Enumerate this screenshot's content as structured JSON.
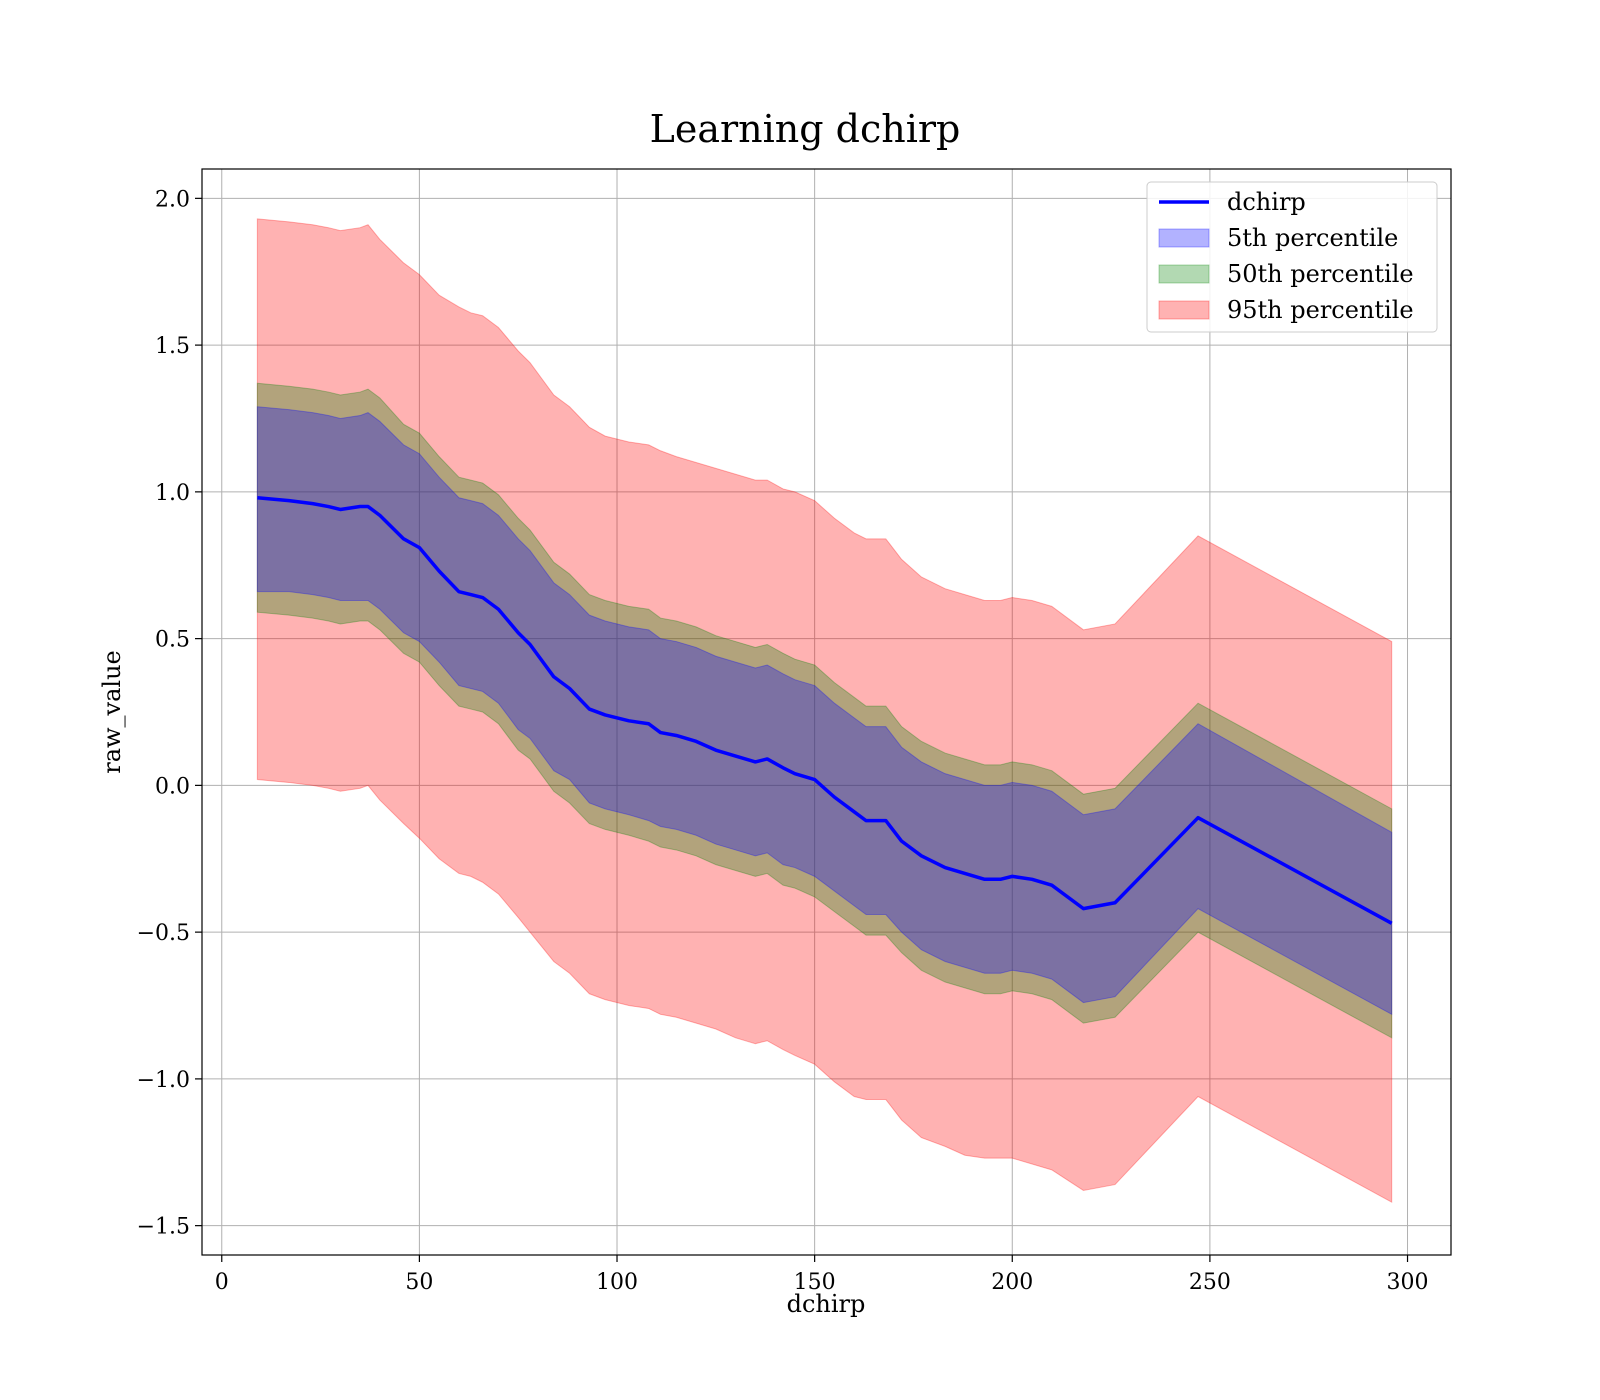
{
  "chart_data": {
    "type": "area",
    "title": "Learning dchirp",
    "xlabel": "dchirp",
    "ylabel": "raw_value",
    "xlim": [
      -5,
      311
    ],
    "ylim": [
      -1.6,
      2.1
    ],
    "xticks": [
      0,
      50,
      100,
      150,
      200,
      250,
      300
    ],
    "yticks": [
      -1.5,
      -1.0,
      -0.5,
      0.0,
      0.5,
      1.0,
      1.5,
      2.0
    ],
    "xtick_labels": [
      "0",
      "50",
      "100",
      "150",
      "200",
      "250",
      "300"
    ],
    "ytick_labels": [
      "−1.5",
      "−1.0",
      "−0.5",
      "0.0",
      "0.5",
      "1.0",
      "1.5",
      "2.0"
    ],
    "grid": true,
    "legend_position": "top-right",
    "x": [
      9,
      17,
      23,
      27,
      30,
      35,
      37,
      40,
      46,
      50,
      55,
      60,
      63,
      66,
      70,
      75,
      78,
      84,
      88,
      93,
      97,
      103,
      108,
      111,
      115,
      120,
      125,
      130,
      135,
      138,
      142,
      145,
      150,
      155,
      160,
      163,
      168,
      172,
      177,
      183,
      188,
      193,
      197,
      200,
      205,
      210,
      218,
      226,
      247,
      296
    ],
    "series": [
      {
        "name": "dchirp",
        "kind": "line",
        "color": "#0000ff",
        "values": [
          0.98,
          0.97,
          0.96,
          0.95,
          0.94,
          0.95,
          0.95,
          0.92,
          0.84,
          0.81,
          0.73,
          0.66,
          0.65,
          0.64,
          0.6,
          0.52,
          0.48,
          0.37,
          0.33,
          0.26,
          0.24,
          0.22,
          0.21,
          0.18,
          0.17,
          0.15,
          0.12,
          0.1,
          0.08,
          0.09,
          0.06,
          0.04,
          0.02,
          -0.04,
          -0.09,
          -0.12,
          -0.12,
          -0.19,
          -0.24,
          -0.28,
          -0.3,
          -0.32,
          -0.32,
          -0.31,
          -0.32,
          -0.34,
          -0.42,
          -0.4,
          -0.11,
          -0.47
        ]
      },
      {
        "name": "5th percentile",
        "kind": "band",
        "color": "#0000ff",
        "opacity": 0.3,
        "lower": [
          0.66,
          0.66,
          0.65,
          0.64,
          0.63,
          0.63,
          0.63,
          0.6,
          0.52,
          0.49,
          0.42,
          0.34,
          0.33,
          0.32,
          0.28,
          0.19,
          0.16,
          0.05,
          0.02,
          -0.06,
          -0.08,
          -0.1,
          -0.12,
          -0.14,
          -0.15,
          -0.17,
          -0.2,
          -0.22,
          -0.24,
          -0.23,
          -0.27,
          -0.28,
          -0.31,
          -0.36,
          -0.41,
          -0.44,
          -0.44,
          -0.5,
          -0.56,
          -0.6,
          -0.62,
          -0.64,
          -0.64,
          -0.63,
          -0.64,
          -0.66,
          -0.74,
          -0.72,
          -0.42,
          -0.78
        ],
        "upper": [
          1.29,
          1.28,
          1.27,
          1.26,
          1.25,
          1.26,
          1.27,
          1.24,
          1.16,
          1.13,
          1.05,
          0.98,
          0.97,
          0.96,
          0.92,
          0.84,
          0.8,
          0.69,
          0.65,
          0.58,
          0.56,
          0.54,
          0.53,
          0.5,
          0.49,
          0.47,
          0.44,
          0.42,
          0.4,
          0.41,
          0.38,
          0.36,
          0.34,
          0.28,
          0.23,
          0.2,
          0.2,
          0.13,
          0.08,
          0.04,
          0.02,
          0.0,
          0.0,
          0.01,
          0.0,
          -0.02,
          -0.1,
          -0.08,
          0.21,
          -0.16
        ]
      },
      {
        "name": "50th percentile",
        "kind": "band",
        "color": "#008000",
        "opacity": 0.3,
        "lower": [
          0.59,
          0.58,
          0.57,
          0.56,
          0.55,
          0.56,
          0.56,
          0.53,
          0.45,
          0.42,
          0.34,
          0.27,
          0.26,
          0.25,
          0.21,
          0.12,
          0.09,
          -0.02,
          -0.06,
          -0.13,
          -0.15,
          -0.17,
          -0.19,
          -0.21,
          -0.22,
          -0.24,
          -0.27,
          -0.29,
          -0.31,
          -0.3,
          -0.34,
          -0.35,
          -0.38,
          -0.43,
          -0.48,
          -0.51,
          -0.51,
          -0.57,
          -0.63,
          -0.67,
          -0.69,
          -0.71,
          -0.71,
          -0.7,
          -0.71,
          -0.73,
          -0.81,
          -0.79,
          -0.5,
          -0.86
        ],
        "upper": [
          1.37,
          1.36,
          1.35,
          1.34,
          1.33,
          1.34,
          1.35,
          1.32,
          1.23,
          1.2,
          1.12,
          1.05,
          1.04,
          1.03,
          0.99,
          0.91,
          0.87,
          0.76,
          0.72,
          0.65,
          0.63,
          0.61,
          0.6,
          0.57,
          0.56,
          0.54,
          0.51,
          0.49,
          0.47,
          0.48,
          0.45,
          0.43,
          0.41,
          0.35,
          0.3,
          0.27,
          0.27,
          0.2,
          0.15,
          0.11,
          0.09,
          0.07,
          0.07,
          0.08,
          0.07,
          0.05,
          -0.03,
          -0.01,
          0.28,
          -0.08
        ]
      },
      {
        "name": "95th percentile",
        "kind": "band",
        "color": "#ff0000",
        "opacity": 0.3,
        "lower": [
          0.02,
          0.01,
          0.0,
          -0.01,
          -0.02,
          -0.01,
          0.0,
          -0.05,
          -0.13,
          -0.18,
          -0.25,
          -0.3,
          -0.31,
          -0.33,
          -0.37,
          -0.45,
          -0.5,
          -0.6,
          -0.64,
          -0.71,
          -0.73,
          -0.75,
          -0.76,
          -0.78,
          -0.79,
          -0.81,
          -0.83,
          -0.86,
          -0.88,
          -0.87,
          -0.9,
          -0.92,
          -0.95,
          -1.01,
          -1.06,
          -1.07,
          -1.07,
          -1.14,
          -1.2,
          -1.23,
          -1.26,
          -1.27,
          -1.27,
          -1.27,
          -1.29,
          -1.31,
          -1.38,
          -1.36,
          -1.06,
          -1.42
        ],
        "upper": [
          1.93,
          1.92,
          1.91,
          1.9,
          1.89,
          1.9,
          1.91,
          1.86,
          1.78,
          1.74,
          1.67,
          1.63,
          1.61,
          1.6,
          1.56,
          1.48,
          1.44,
          1.33,
          1.29,
          1.22,
          1.19,
          1.17,
          1.16,
          1.14,
          1.12,
          1.1,
          1.08,
          1.06,
          1.04,
          1.04,
          1.01,
          1.0,
          0.97,
          0.91,
          0.86,
          0.84,
          0.84,
          0.77,
          0.71,
          0.67,
          0.65,
          0.63,
          0.63,
          0.64,
          0.63,
          0.61,
          0.53,
          0.55,
          0.85,
          0.49
        ]
      }
    ]
  }
}
